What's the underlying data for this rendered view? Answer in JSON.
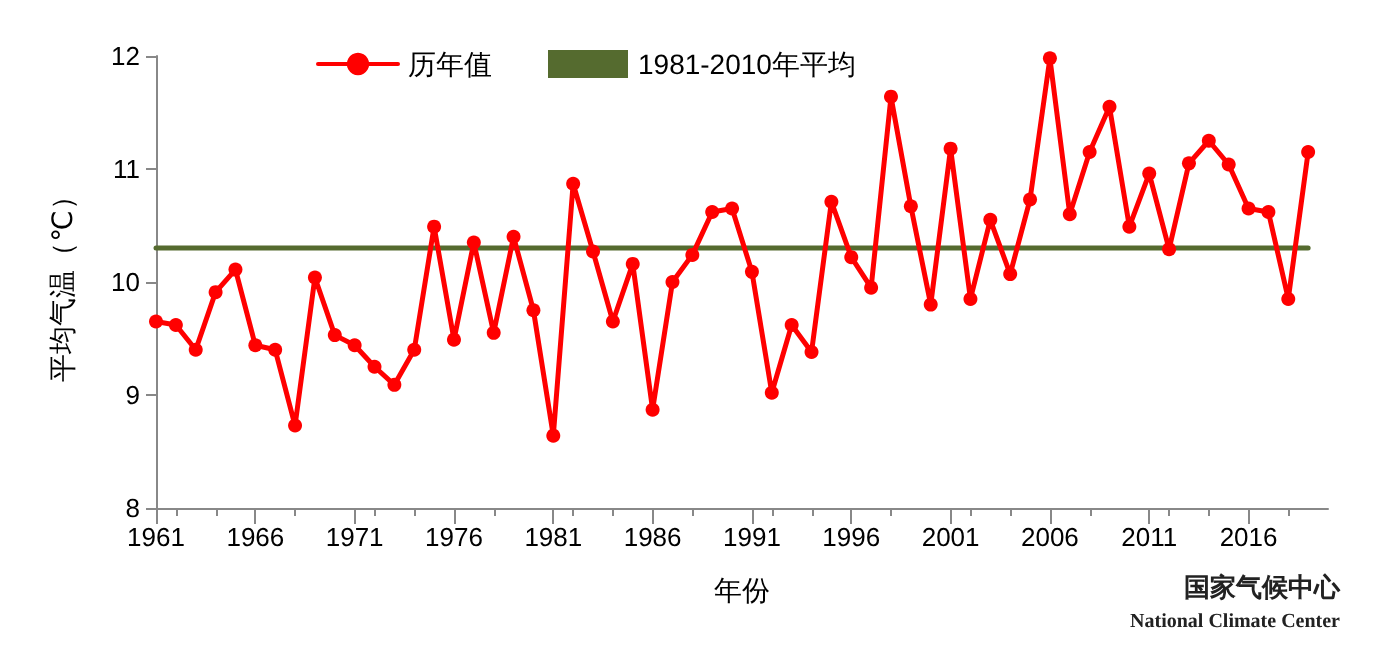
{
  "chart_data": {
    "type": "line",
    "xlabel": "年份",
    "ylabel": "平均气温（℃）",
    "x": [
      1961,
      1962,
      1963,
      1964,
      1965,
      1966,
      1967,
      1968,
      1969,
      1970,
      1971,
      1972,
      1973,
      1974,
      1975,
      1976,
      1977,
      1978,
      1979,
      1980,
      1981,
      1982,
      1983,
      1984,
      1985,
      1986,
      1987,
      1988,
      1989,
      1990,
      1991,
      1992,
      1993,
      1994,
      1995,
      1996,
      1997,
      1998,
      1999,
      2000,
      2001,
      2002,
      2003,
      2004,
      2005,
      2006,
      2007,
      2008,
      2009,
      2010,
      2011,
      2012,
      2013,
      2014,
      2015,
      2016,
      2017,
      2018,
      2019
    ],
    "series": [
      {
        "name": "历年值",
        "color": "#ff0000",
        "marker": "circle",
        "values": [
          9.65,
          9.62,
          9.4,
          9.91,
          10.11,
          9.44,
          9.4,
          8.73,
          10.04,
          9.53,
          9.44,
          9.25,
          9.09,
          9.4,
          10.49,
          9.49,
          10.35,
          9.55,
          10.4,
          9.75,
          8.64,
          10.87,
          10.27,
          9.65,
          10.16,
          8.87,
          10.0,
          10.24,
          10.62,
          10.65,
          10.09,
          9.02,
          9.62,
          9.38,
          10.71,
          10.22,
          9.95,
          11.64,
          10.67,
          9.8,
          11.18,
          9.85,
          10.55,
          10.07,
          10.73,
          11.98,
          10.6,
          11.15,
          11.55,
          10.49,
          10.96,
          10.29,
          11.05,
          11.25,
          11.04,
          10.65,
          10.62,
          9.85,
          11.15
        ]
      },
      {
        "name": "1981-2010年平均",
        "color": "#556b2f",
        "marker": "none",
        "x": [
          1961,
          2019
        ],
        "values": [
          10.3,
          10.3
        ]
      }
    ],
    "xlim": [
      1961,
      2020
    ],
    "xticks": [
      1961,
      1966,
      1971,
      1976,
      1981,
      1986,
      1991,
      1996,
      2001,
      2006,
      2011,
      2016
    ],
    "ylim": [
      8,
      12
    ],
    "yticks": [
      8,
      9,
      10,
      11,
      12
    ],
    "grid": false,
    "legend": "top left",
    "annotations": [
      "国家气候中心",
      "National Climate Center"
    ]
  }
}
